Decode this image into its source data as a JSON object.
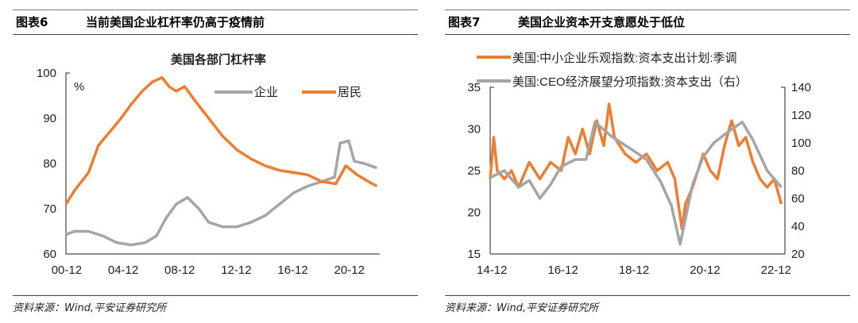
{
  "panels": [
    {
      "fig": "图表6",
      "title": "当前美国企业杠杆率仍高于疫情前",
      "source": "资料来源：Wind,平安证券研究所"
    },
    {
      "fig": "图表7",
      "title": "美国企业资本开支意愿处于低位",
      "source": "资料来源：Wind,平安证券研究所"
    }
  ],
  "chart_data": [
    {
      "type": "line",
      "title": "美国各部门杠杆率",
      "unit": "%",
      "ylim": [
        60,
        100
      ],
      "xlim": [
        2000.9,
        2023.1
      ],
      "yticks": [
        "60",
        "70",
        "80",
        "90",
        "100"
      ],
      "xticks": [
        "00-12",
        "04-12",
        "08-12",
        "12-12",
        "16-12",
        "20-12"
      ],
      "legend_position": "top-right",
      "series": [
        {
          "name": "企业",
          "color": "#a5a5a5",
          "x": [
            2000.9,
            2001.5,
            2002.5,
            2003.5,
            2004.5,
            2005.5,
            2006.5,
            2007.3,
            2008.0,
            2008.7,
            2009.5,
            2010.3,
            2011.0,
            2012.0,
            2013.0,
            2014.0,
            2015.0,
            2016.0,
            2017.0,
            2018.0,
            2019.0,
            2019.9,
            2020.3,
            2020.9,
            2021.3,
            2022.0,
            2022.9
          ],
          "y": [
            64.3,
            65,
            65,
            64,
            62.5,
            62,
            62.5,
            64,
            68,
            71,
            72.5,
            70,
            67,
            66,
            66,
            67,
            68.5,
            71,
            73.5,
            75,
            76,
            77,
            84.5,
            85,
            80.5,
            80,
            79
          ]
        },
        {
          "name": "居民",
          "color": "#ed7d31",
          "x": [
            2000.9,
            2001.5,
            2002.5,
            2003.2,
            2004.0,
            2004.8,
            2005.5,
            2006.3,
            2007.0,
            2007.7,
            2008.2,
            2008.7,
            2009.3,
            2010.0,
            2011.0,
            2012.0,
            2013.0,
            2014.0,
            2015.0,
            2016.0,
            2017.0,
            2018.0,
            2019.0,
            2020.0,
            2020.7,
            2021.5,
            2022.3,
            2022.9
          ],
          "y": [
            71,
            74,
            78,
            84,
            87,
            90,
            93,
            96,
            98,
            99,
            97,
            96,
            97,
            94,
            90,
            86,
            83,
            81,
            79.5,
            78.5,
            78,
            77.5,
            76,
            75.5,
            79.5,
            77.5,
            76,
            75
          ]
        }
      ]
    },
    {
      "type": "line",
      "xlim": [
        2014.9,
        2023.2
      ],
      "ylim": [
        15,
        35
      ],
      "y2lim": [
        20,
        140
      ],
      "yticks": [
        "15",
        "20",
        "25",
        "30",
        "35"
      ],
      "y2ticks": [
        "20",
        "40",
        "60",
        "80",
        "100",
        "120",
        "140"
      ],
      "xticks": [
        "14-12",
        "16-12",
        "18-12",
        "20-12",
        "22-12"
      ],
      "legend_position": "top",
      "series": [
        {
          "name": "美国:中小企业乐观指数:资本支出计划:季调",
          "color": "#ed7d31",
          "axis": "left",
          "x": [
            2014.9,
            2015.0,
            2015.1,
            2015.3,
            2015.5,
            2015.7,
            2016.0,
            2016.3,
            2016.6,
            2016.9,
            2017.1,
            2017.3,
            2017.5,
            2017.7,
            2017.9,
            2018.1,
            2018.25,
            2018.4,
            2018.7,
            2019.0,
            2019.3,
            2019.6,
            2019.9,
            2020.1,
            2020.3,
            2020.4,
            2020.6,
            2020.9,
            2021.1,
            2021.3,
            2021.5,
            2021.7,
            2021.9,
            2022.1,
            2022.3,
            2022.5,
            2022.7,
            2022.9,
            2023.1
          ],
          "y": [
            24,
            29,
            25,
            24,
            25,
            23,
            26,
            24,
            26,
            25,
            29,
            27,
            30,
            27,
            31,
            28,
            33,
            29,
            27,
            26,
            27,
            25,
            26,
            24,
            18,
            21,
            23,
            27,
            25,
            24,
            28,
            31,
            28,
            29,
            26,
            24,
            23,
            24,
            21
          ]
        },
        {
          "name": "美国:CEO经济展望分项指数:资本支出（右）",
          "color": "#a5a5a5",
          "axis": "right",
          "x": [
            2014.9,
            2015.3,
            2015.7,
            2016.0,
            2016.3,
            2016.6,
            2016.9,
            2017.3,
            2017.6,
            2017.85,
            2018.3,
            2018.9,
            2019.3,
            2019.7,
            2020.0,
            2020.25,
            2020.6,
            2020.9,
            2021.2,
            2021.6,
            2022.0,
            2022.3,
            2022.7,
            2023.1
          ],
          "y": [
            75,
            80,
            68,
            73,
            60,
            70,
            83,
            88,
            88,
            115,
            105,
            95,
            88,
            72,
            55,
            27,
            70,
            90,
            100,
            108,
            115,
            102,
            80,
            68
          ]
        }
      ]
    }
  ]
}
